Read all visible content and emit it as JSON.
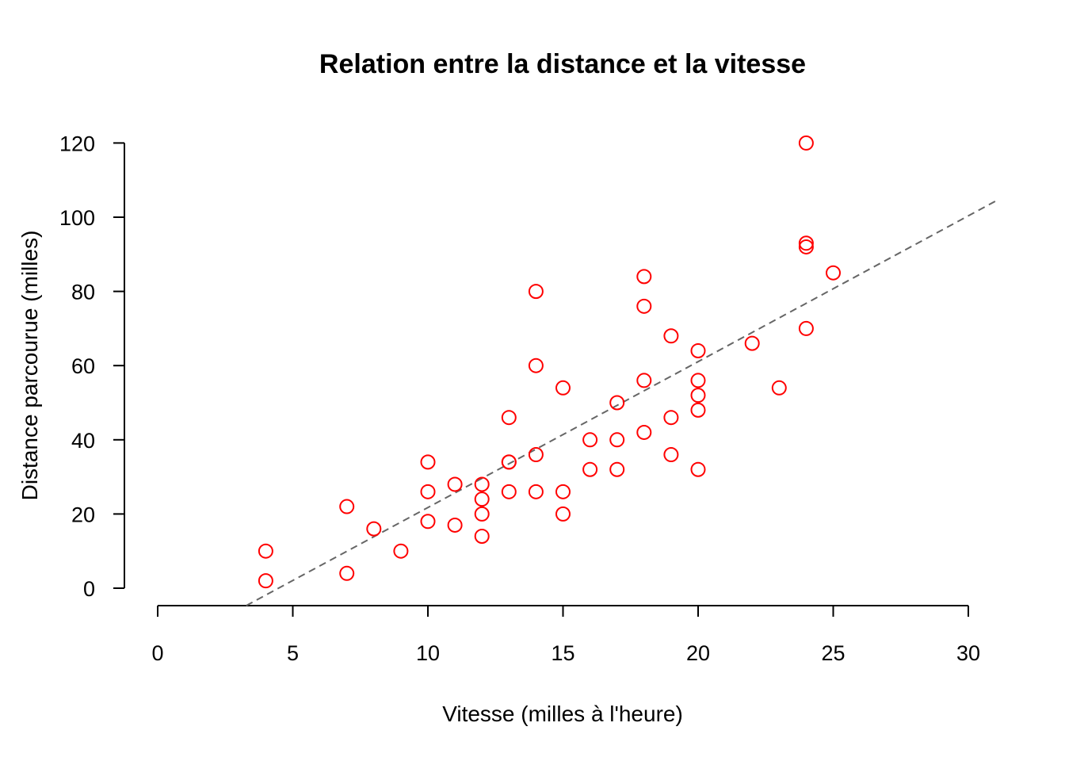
{
  "chart_data": {
    "type": "scatter",
    "title": "Relation entre la distance et la vitesse",
    "xlabel": "Vitesse (milles à l'heure)",
    "ylabel": "Distance parcourue (milles)",
    "xlim": [
      0,
      30
    ],
    "ylim": [
      0,
      120
    ],
    "x_ticks": [
      "0",
      "5",
      "10",
      "15",
      "20",
      "25",
      "30"
    ],
    "y_ticks": [
      "0",
      "20",
      "40",
      "60",
      "80",
      "100",
      "120"
    ],
    "grid": false,
    "legend": "none",
    "point_color": "#ff0000",
    "fit_line_color": "#666666",
    "fit_line": {
      "style": "dashed",
      "intercept": -17.579,
      "slope": 3.932
    },
    "points": [
      {
        "x": 4,
        "y": 2
      },
      {
        "x": 4,
        "y": 10
      },
      {
        "x": 7,
        "y": 4
      },
      {
        "x": 7,
        "y": 22
      },
      {
        "x": 8,
        "y": 16
      },
      {
        "x": 9,
        "y": 10
      },
      {
        "x": 10,
        "y": 18
      },
      {
        "x": 10,
        "y": 26
      },
      {
        "x": 10,
        "y": 34
      },
      {
        "x": 11,
        "y": 17
      },
      {
        "x": 11,
        "y": 28
      },
      {
        "x": 12,
        "y": 14
      },
      {
        "x": 12,
        "y": 20
      },
      {
        "x": 12,
        "y": 24
      },
      {
        "x": 12,
        "y": 28
      },
      {
        "x": 13,
        "y": 26
      },
      {
        "x": 13,
        "y": 34
      },
      {
        "x": 13,
        "y": 34
      },
      {
        "x": 13,
        "y": 46
      },
      {
        "x": 14,
        "y": 26
      },
      {
        "x": 14,
        "y": 36
      },
      {
        "x": 14,
        "y": 60
      },
      {
        "x": 14,
        "y": 80
      },
      {
        "x": 15,
        "y": 20
      },
      {
        "x": 15,
        "y": 26
      },
      {
        "x": 15,
        "y": 54
      },
      {
        "x": 16,
        "y": 32
      },
      {
        "x": 16,
        "y": 40
      },
      {
        "x": 17,
        "y": 32
      },
      {
        "x": 17,
        "y": 40
      },
      {
        "x": 17,
        "y": 50
      },
      {
        "x": 18,
        "y": 42
      },
      {
        "x": 18,
        "y": 56
      },
      {
        "x": 18,
        "y": 76
      },
      {
        "x": 18,
        "y": 84
      },
      {
        "x": 19,
        "y": 36
      },
      {
        "x": 19,
        "y": 46
      },
      {
        "x": 19,
        "y": 68
      },
      {
        "x": 20,
        "y": 32
      },
      {
        "x": 20,
        "y": 48
      },
      {
        "x": 20,
        "y": 52
      },
      {
        "x": 20,
        "y": 56
      },
      {
        "x": 20,
        "y": 64
      },
      {
        "x": 22,
        "y": 66
      },
      {
        "x": 23,
        "y": 54
      },
      {
        "x": 24,
        "y": 70
      },
      {
        "x": 24,
        "y": 92
      },
      {
        "x": 24,
        "y": 93
      },
      {
        "x": 24,
        "y": 120
      },
      {
        "x": 25,
        "y": 85
      }
    ]
  }
}
